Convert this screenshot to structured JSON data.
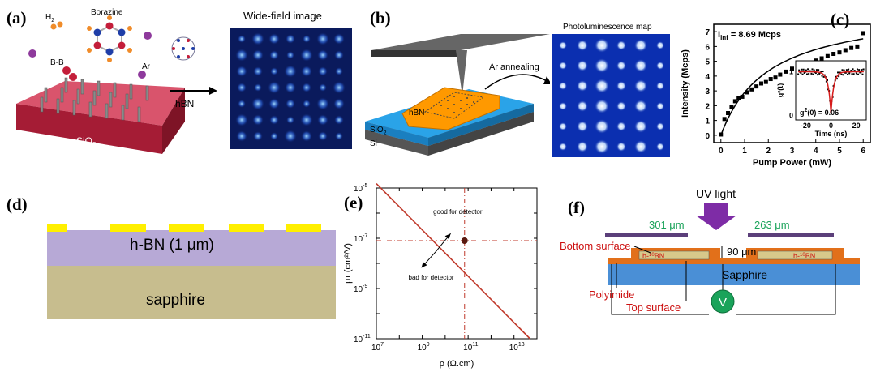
{
  "panels": {
    "a": {
      "label": "(a)",
      "h2": "H",
      "h2_sub": "2",
      "borazine": "Borazine",
      "bb": "B-B",
      "ar": "Ar",
      "sio2": "SiO",
      "sio2_sub": "2",
      "hbn": "hBN",
      "widefield_title": "Wide-field image"
    },
    "b": {
      "label": "(b)",
      "ar_annealing": "Ar annealing",
      "pl_title": "Photoluminescence map",
      "hbn": "hBN",
      "sio2": "SiO",
      "sio2_sub": "2",
      "si": "Si"
    },
    "d": {
      "label": "(d)",
      "hbn_layer": "h-BN (1 μm)",
      "substrate": "sapphire"
    },
    "f": {
      "label": "(f)",
      "uv_light": "UV light",
      "gap_left": "301 μm",
      "gap_right": "263 μm",
      "bottom_surface": "Bottom surface",
      "gap_mid": "90 μm",
      "layer_left": "h-",
      "layer_left_sup": "10",
      "layer_left_tail": "BN",
      "substrate": "Sapphire",
      "polyimide": "Polyimide",
      "top_surface": "Top surface",
      "voltmeter": "V"
    }
  },
  "chart_data": [
    {
      "panel": "c",
      "label": "(c)",
      "type": "scatter",
      "xlabel": "Pump Power (mW)",
      "ylabel": "Intensity (Mcps)",
      "xlim": [
        -0.3,
        6.3
      ],
      "ylim": [
        -0.5,
        7.5
      ],
      "xticks": [
        "0",
        "1",
        "2",
        "3",
        "4",
        "5",
        "6"
      ],
      "yticks": [
        "0",
        "1",
        "2",
        "3",
        "4",
        "5",
        "6",
        "7"
      ],
      "annotation": "I",
      "annotation_sub": "inf",
      "annotation_value": " = 8.69 Mcps",
      "x": [
        0.0,
        0.15,
        0.3,
        0.45,
        0.6,
        0.75,
        0.9,
        1.1,
        1.3,
        1.5,
        1.7,
        1.9,
        2.1,
        2.3,
        2.5,
        2.75,
        3.0,
        3.25,
        3.5,
        3.75,
        4.0,
        4.25,
        4.5,
        4.75,
        5.0,
        5.25,
        5.5,
        5.75,
        6.0
      ],
      "y": [
        0.05,
        1.1,
        1.5,
        1.9,
        2.3,
        2.5,
        2.6,
        2.9,
        3.1,
        3.3,
        3.5,
        3.6,
        3.8,
        3.9,
        4.1,
        4.3,
        4.5,
        4.6,
        4.8,
        4.9,
        5.05,
        5.2,
        5.35,
        5.5,
        5.6,
        5.75,
        5.9,
        6.0,
        6.9
      ],
      "fit_Iinf": 8.69,
      "fit_Psat": 2.0,
      "inset": {
        "type": "scatter",
        "xlabel": "Time (ns)",
        "ylabel": "g²(t)",
        "xlim": [
          -28,
          28
        ],
        "ylim": [
          -0.1,
          1.25
        ],
        "xticks": [
          "-20",
          "0",
          "20"
        ],
        "yticks": [
          "0",
          "1"
        ],
        "g2_zero_label": "g",
        "g2_zero_sup": "2",
        "g2_zero_value": "(0) = 0.06",
        "g2_zero": 0.06,
        "tau_ns": 2.2
      }
    },
    {
      "panel": "e",
      "label": "(e)",
      "type": "line",
      "xscale": "log",
      "yscale": "log",
      "xlabel": "ρ (Ω.cm)",
      "ylabel": "μτ (cm²/V)",
      "xlim": [
        10000000.0,
        100000000000000.0
      ],
      "ylim": [
        1e-11,
        1e-05
      ],
      "xticks": [
        {
          "b": "10",
          "e": "7"
        },
        {
          "b": "10",
          "e": "9"
        },
        {
          "b": "10",
          "e": "11"
        },
        {
          "b": "10",
          "e": "13"
        }
      ],
      "yticks": [
        {
          "b": "10",
          "e": "-5"
        },
        {
          "b": "10",
          "e": "-7"
        },
        {
          "b": "10",
          "e": "-9"
        },
        {
          "b": "10",
          "e": "-11"
        }
      ],
      "line_x": [
        10000000.0,
        50000000000000.0
      ],
      "line_y": [
        1.5e-05,
        1e-11
      ],
      "point": {
        "x": 70000000000.0,
        "y": 8e-08
      },
      "good_label": "good for detector",
      "bad_label": "bad for detector"
    }
  ],
  "colors": {
    "accent_red": "#c0392b",
    "sio2_red": "#b11a36",
    "hbn_orange": "#ff9900",
    "sio2_blue": "#2aa3e8",
    "hbn_purple": "#b7a9d6",
    "sapphire_tan": "#c7bd8e",
    "contact_yellow": "#ffef00",
    "uv_purple": "#7e2ca6",
    "sapphire_blue": "#4a8fd6",
    "green": "#1aa35a"
  }
}
